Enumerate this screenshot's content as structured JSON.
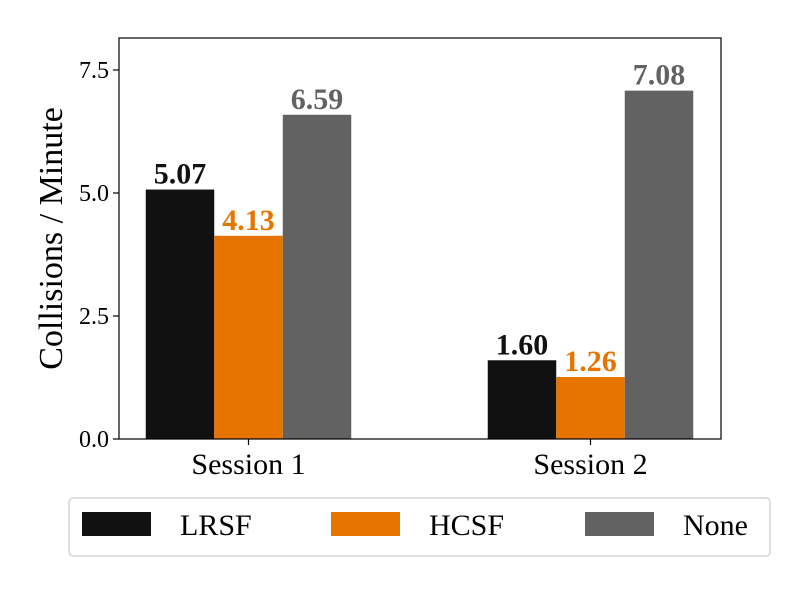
{
  "chart_data": {
    "type": "bar",
    "categories": [
      "Session 1",
      "Session 2"
    ],
    "series": [
      {
        "name": "LRSF",
        "values": [
          5.07,
          1.6
        ],
        "labels": [
          "5.07",
          "1.60"
        ],
        "color": "#111111",
        "label_color": "#111111"
      },
      {
        "name": "HCSF",
        "values": [
          4.13,
          1.26
        ],
        "labels": [
          "4.13",
          "1.26"
        ],
        "color": "#e87400",
        "label_color": "#e87400"
      },
      {
        "name": "None",
        "values": [
          6.59,
          7.08
        ],
        "labels": [
          "6.59",
          "7.08"
        ],
        "color": "#626262",
        "label_color": "#626262"
      }
    ],
    "ylabel": "Collisions / Minute",
    "xlabel": "",
    "ylim": [
      0,
      8.15
    ],
    "yticks": [
      0.0,
      2.5,
      5.0,
      7.5
    ],
    "ytick_labels": [
      "0.0",
      "2.5",
      "5.0",
      "7.5"
    ],
    "grid": false,
    "legend_placement": "bottom-center"
  }
}
